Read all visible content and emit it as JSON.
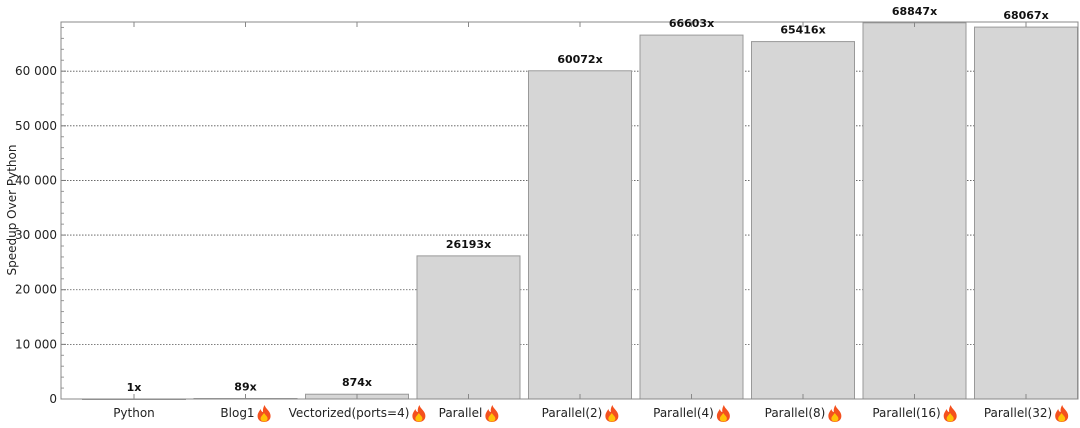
{
  "chart_data": {
    "type": "bar",
    "title": "",
    "xlabel": "",
    "ylabel": "Speedup Over Python",
    "ylim": [
      0,
      69000
    ],
    "yticks": [
      0,
      10000,
      20000,
      30000,
      40000,
      50000,
      60000
    ],
    "ytick_labels": [
      "0",
      "10 000",
      "20 000",
      "30 000",
      "40 000",
      "50 000",
      "60 000"
    ],
    "grid": "horizontal dotted",
    "categories": [
      "Python",
      "Blog1",
      "Vectorized(ports=4)",
      "Parallel",
      "Parallel(2)",
      "Parallel(4)",
      "Parallel(8)",
      "Parallel(16)",
      "Parallel(32)"
    ],
    "flame_icon": [
      false,
      true,
      true,
      true,
      true,
      true,
      true,
      true,
      true
    ],
    "values": [
      1,
      89,
      874,
      26193,
      60072,
      66603,
      65416,
      68847,
      68067
    ],
    "data_labels": [
      "1x",
      "89x",
      "874x",
      "26193x",
      "60072x",
      "66603x",
      "65416x",
      "68847x",
      "68067x"
    ],
    "bar_color": "#d6d6d6",
    "bar_edge_color": "#999999"
  }
}
